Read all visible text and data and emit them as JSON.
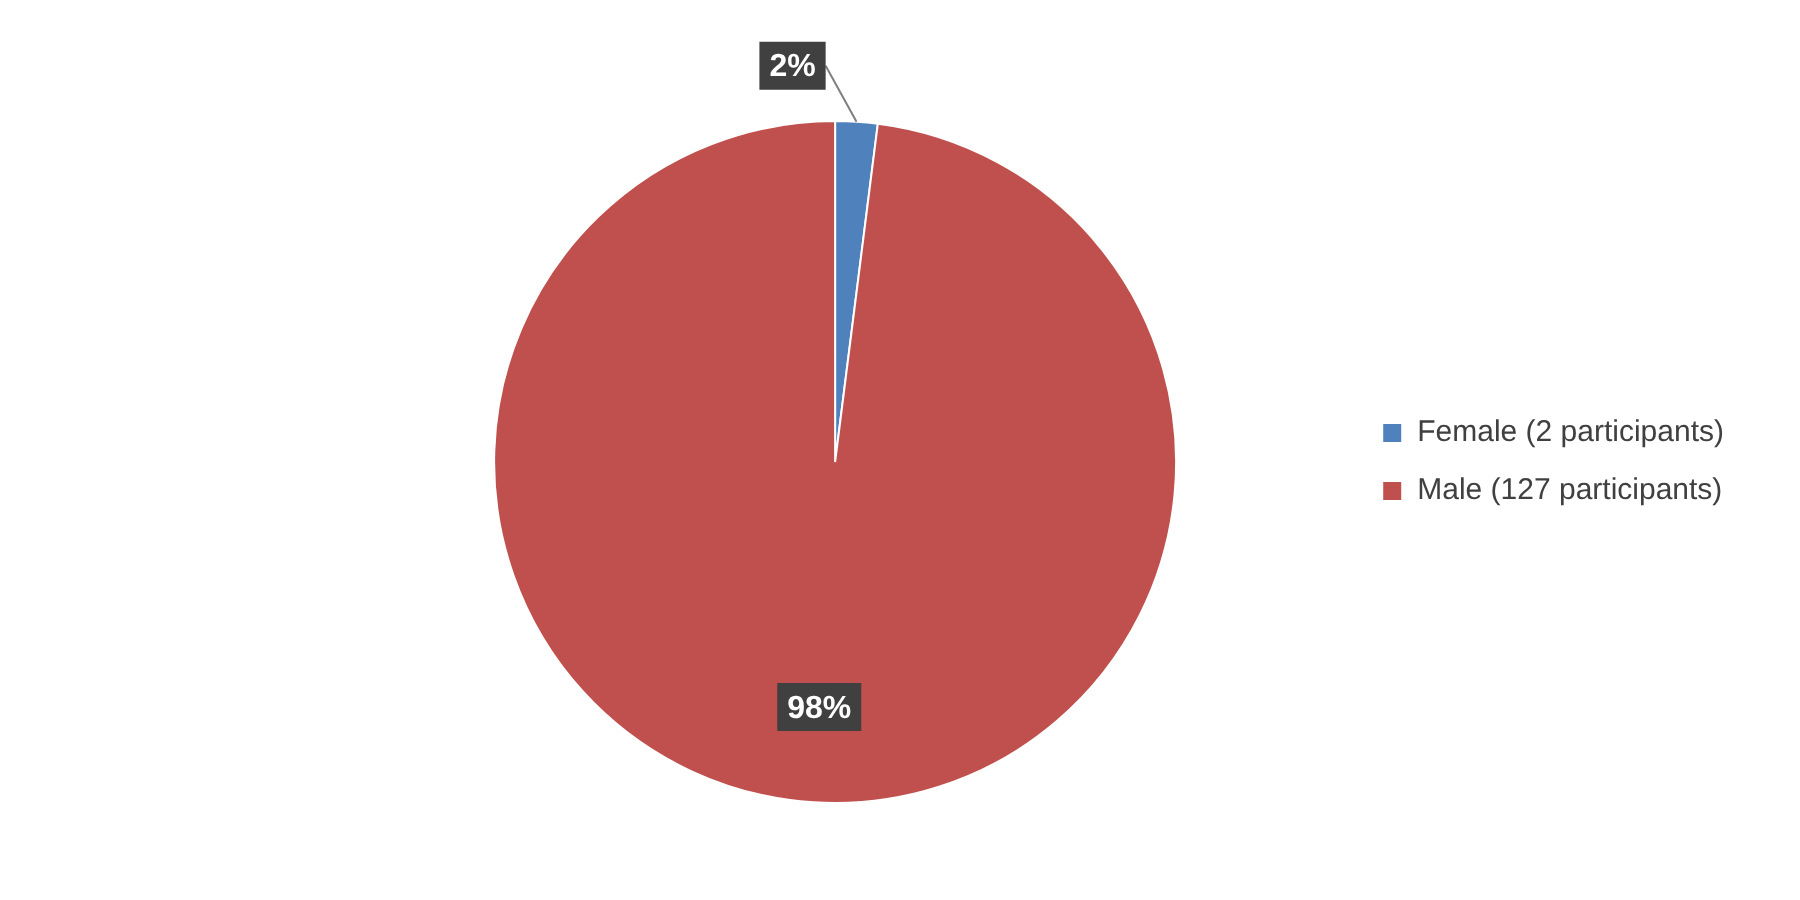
{
  "chart_data": {
    "type": "pie",
    "categories": [
      "Female (2 participants)",
      "Male (127 participants)"
    ],
    "values": [
      2,
      98
    ],
    "colors": [
      "#4f81bd",
      "#c0504d"
    ],
    "value_labels": [
      "2%",
      "98%"
    ],
    "legend": "right"
  }
}
